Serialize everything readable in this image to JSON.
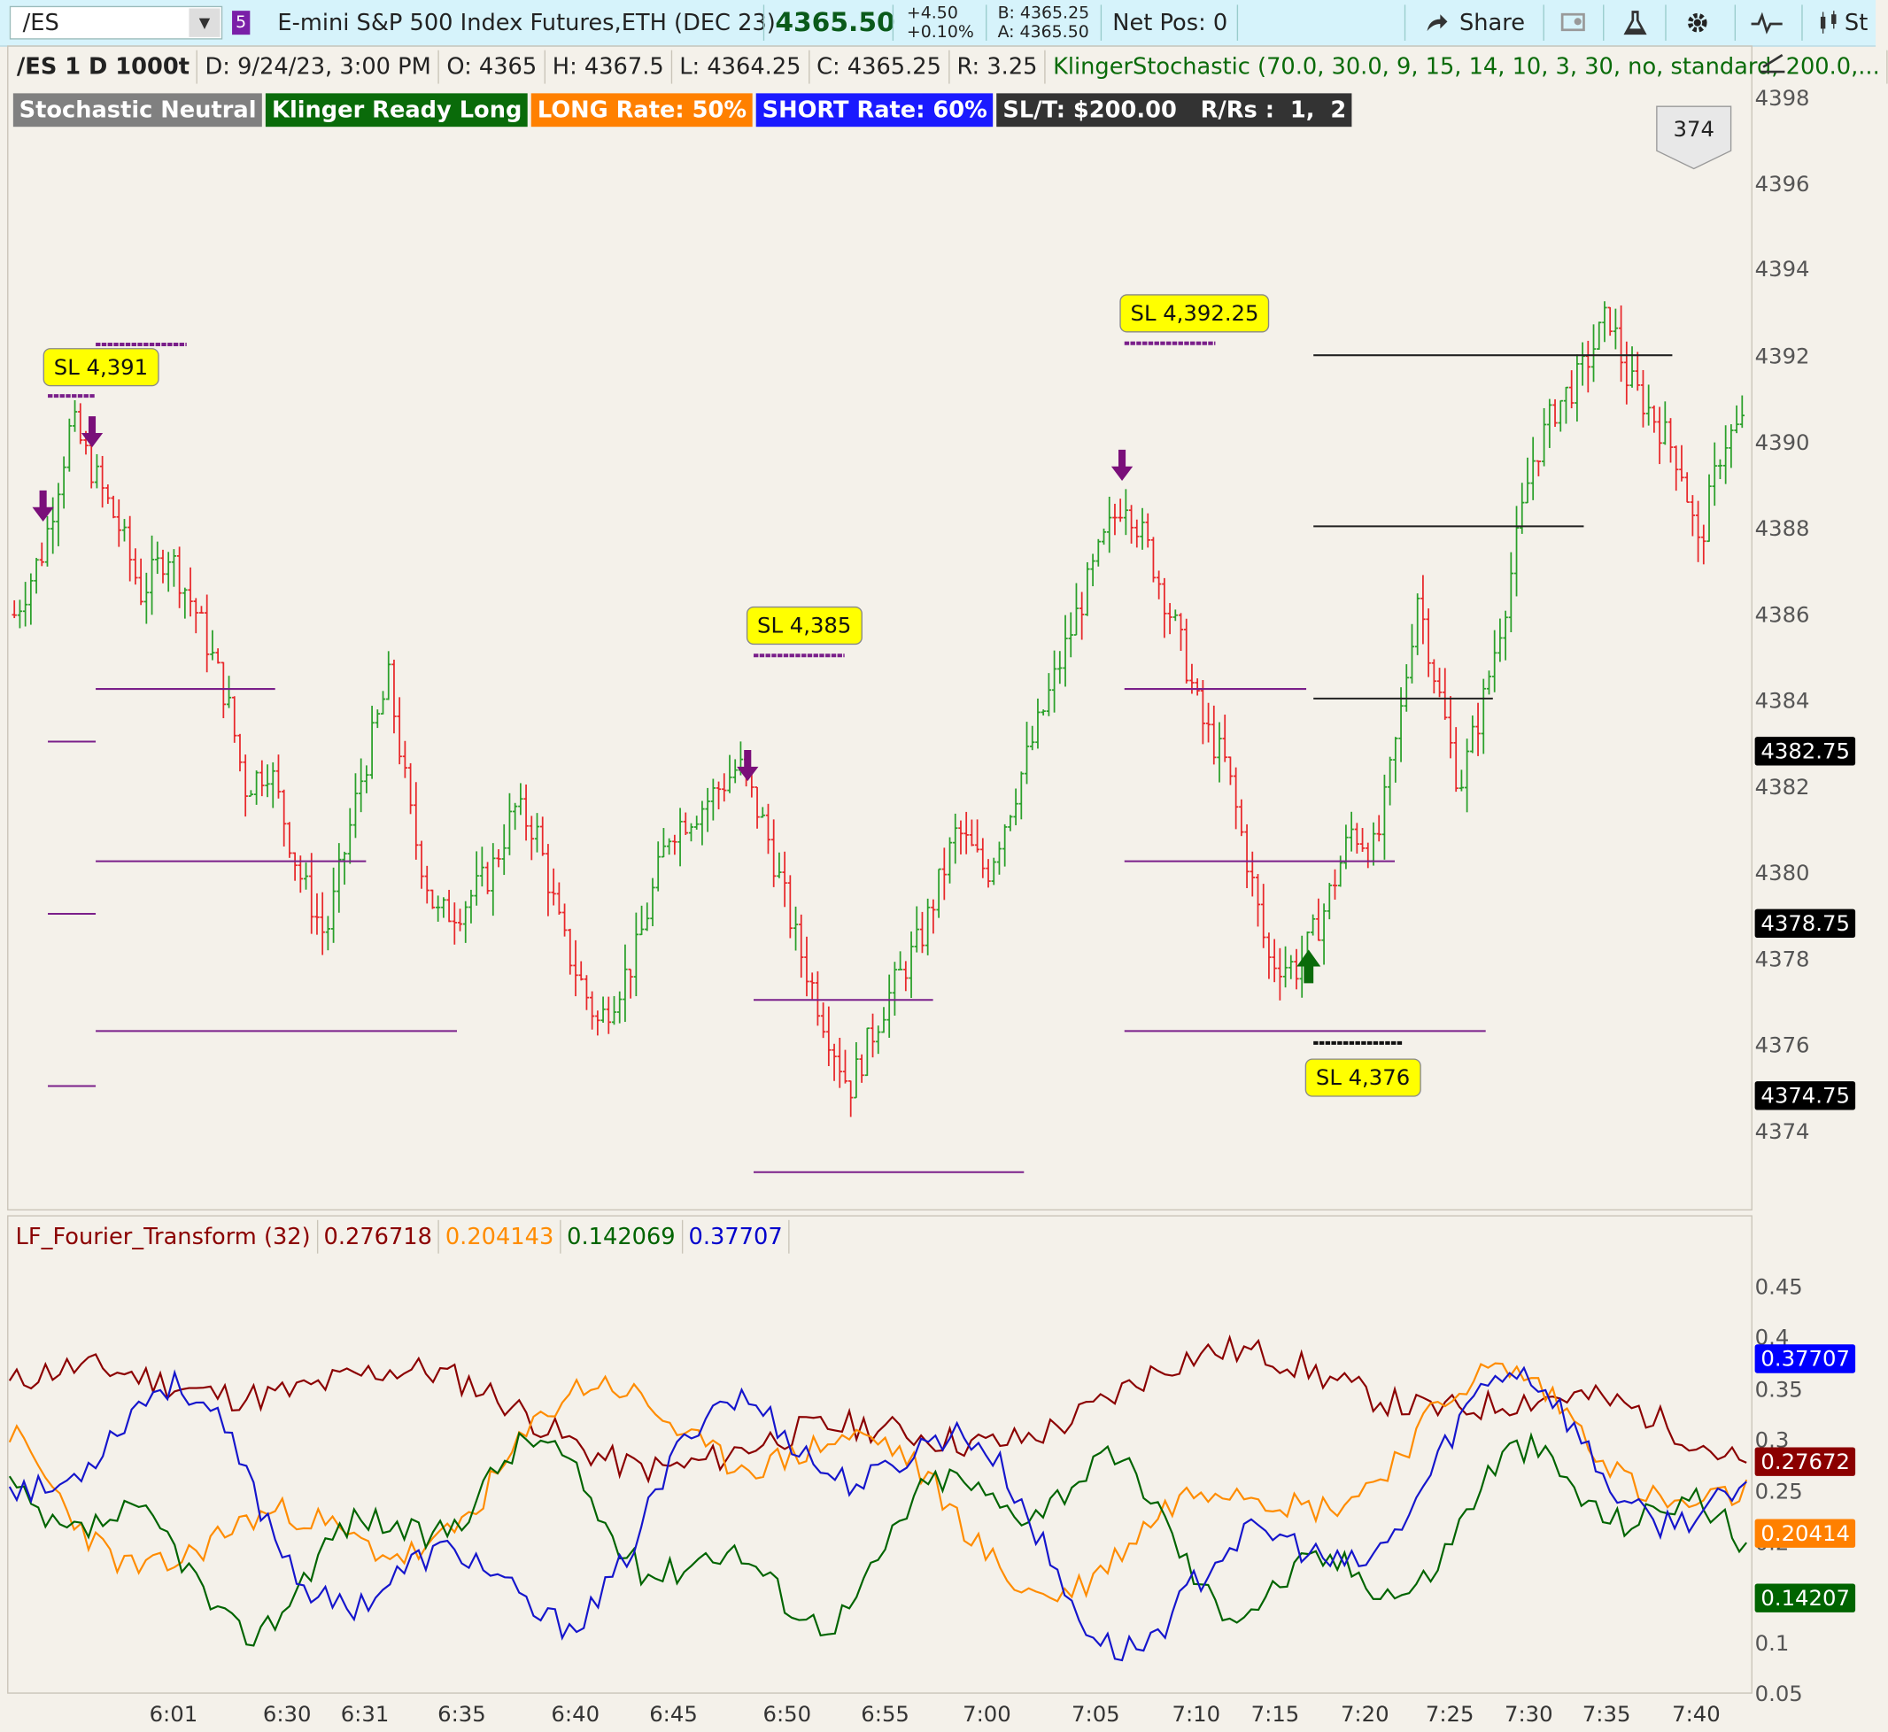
{
  "toolbar": {
    "symbol": "/ES",
    "link_group": "5",
    "description": "E-mini S&P 500 Index Futures,ETH (DEC 23)",
    "last": "4365.50",
    "change": "+4.50",
    "change_pct": "+0.10%",
    "bid": "B: 4365.25",
    "ask": "A: 4365.50",
    "net_pos": "Net Pos: 0",
    "share_label": "Share",
    "studies_label": "St"
  },
  "header": {
    "chart_id": "/ES 1 D 1000t",
    "date": "D: 9/24/23, 3:00 PM",
    "open": "O: 4365",
    "high": "H: 4367.5",
    "low": "L: 4364.25",
    "close": "C: 4365.25",
    "range": "R: 3.25",
    "study": "KlingerStochastic (70.0, 30.0, 9, 15, 14, 10, 3, 30, no, standard, 200.0,..."
  },
  "badges": [
    {
      "text": "Stochastic Neutral",
      "color": "#808080"
    },
    {
      "text": "Klinger Ready Long",
      "color": "#0a6b0a"
    },
    {
      "text": "LONG Rate: 50%",
      "color": "#ff8000"
    },
    {
      "text": "SHORT Rate: 60%",
      "color": "#1a1aff"
    },
    {
      "text": "SL/T: $200.00   R/Rs :  1,  2",
      "color": "#333333"
    }
  ],
  "bar_count": "374",
  "price_axis": {
    "ticks": [
      "4398",
      "4396",
      "4394",
      "4392",
      "4390",
      "4388",
      "4386",
      "4384",
      "4382",
      "4380",
      "4378",
      "4376",
      "4374"
    ],
    "tags": [
      {
        "text": "4382.75",
        "color": "#000000"
      },
      {
        "text": "4378.75",
        "color": "#000000"
      },
      {
        "text": "4374.75",
        "color": "#000000"
      }
    ]
  },
  "sl_labels": [
    "SL 4,391",
    "SL 4,385",
    "SL 4,392.25",
    "SL 4,376"
  ],
  "lower": {
    "title": "LF_Fourier_Transform (32)",
    "values": [
      {
        "text": "0.276718",
        "color": "#8b0000"
      },
      {
        "text": "0.204143",
        "color": "#ff8c00"
      },
      {
        "text": "0.142069",
        "color": "#006400"
      },
      {
        "text": "0.37707",
        "color": "#0000cc"
      }
    ],
    "ticks": [
      "0.45",
      "0.4",
      "0.35",
      "0.3",
      "0.25",
      "0.2",
      "0.1",
      "0.05"
    ],
    "tags": [
      {
        "text": "0.37707",
        "color": "#0000ff"
      },
      {
        "text": "0.27672",
        "color": "#8b0000"
      },
      {
        "text": "0.20414",
        "color": "#ff8000"
      },
      {
        "text": "0.14207",
        "color": "#006400"
      }
    ]
  },
  "time_axis": [
    "6:01",
    "6:30",
    "6:31",
    "6:35",
    "6:40",
    "6:45",
    "6:50",
    "6:55",
    "7:00",
    "7:05",
    "7:10",
    "7:15",
    "7:20",
    "7:25",
    "7:30",
    "7:35",
    "7:40"
  ],
  "colors": {
    "up": "#2aa02a",
    "down": "#e8282b",
    "neutral": "#888888",
    "signal": "#7a0f7a",
    "long_arrow": "#0a6b0a"
  }
}
